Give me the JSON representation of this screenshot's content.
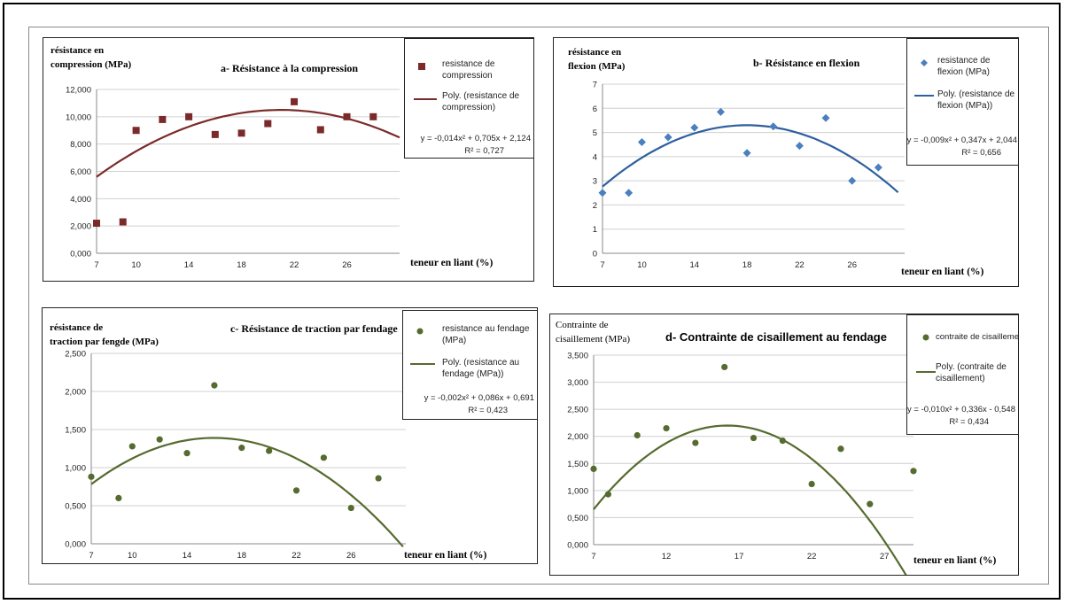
{
  "chart_data": [
    {
      "id": "a",
      "type": "scatter",
      "title": "a-  Résistance à la compression",
      "ylabel": [
        "résistance en",
        "compression  (MPa)"
      ],
      "xlabel": "teneur en liant  (%)",
      "x_ticks": [
        7,
        10,
        14,
        18,
        22,
        26
      ],
      "y_ticks": [
        "0,000",
        "2,000",
        "4,000",
        "6,000",
        "8,000",
        "10,000",
        "12,000"
      ],
      "xlim": [
        7,
        30
      ],
      "ylim": [
        0,
        12
      ],
      "marker": "square",
      "color": "#7b2a2a",
      "points": [
        [
          7,
          2.2
        ],
        [
          9,
          2.3
        ],
        [
          10,
          9.0
        ],
        [
          12,
          9.8
        ],
        [
          14,
          10.0
        ],
        [
          16,
          8.7
        ],
        [
          18,
          8.8
        ],
        [
          20,
          9.5
        ],
        [
          22,
          11.1
        ],
        [
          24,
          9.05
        ],
        [
          26,
          10.0
        ],
        [
          28,
          10.0
        ]
      ],
      "trend": {
        "a": -0.025,
        "h": 21,
        "k": 10.5,
        "from": 7,
        "to": 30
      },
      "legend": {
        "series": "resistance de compression",
        "poly": "Poly. (resistance de compression)",
        "equation": "y = -0,014x² + 0,705x + 2,124",
        "r2": "R² = 0,727"
      }
    },
    {
      "id": "b",
      "type": "scatter",
      "title": "b-  Résistance en flexion",
      "ylabel": [
        "résistance en",
        "flexion  (MPa)"
      ],
      "xlabel": "teneur en liant  (%)",
      "x_ticks": [
        7,
        10,
        14,
        18,
        22,
        26
      ],
      "y_ticks": [
        "0",
        "1",
        "2",
        "3",
        "4",
        "5",
        "6",
        "7"
      ],
      "xlim": [
        7,
        30
      ],
      "ylim": [
        0,
        7
      ],
      "marker": "diamond",
      "color": "#4a7fc0",
      "points": [
        [
          7,
          2.5
        ],
        [
          9,
          2.5
        ],
        [
          10,
          4.6
        ],
        [
          12,
          4.8
        ],
        [
          14,
          5.2
        ],
        [
          16,
          5.85
        ],
        [
          18,
          4.15
        ],
        [
          20,
          5.25
        ],
        [
          22,
          4.45
        ],
        [
          24,
          5.6
        ],
        [
          26,
          3.0
        ],
        [
          28,
          3.55
        ]
      ],
      "trend": {
        "a": -0.021,
        "h": 18,
        "k": 5.3,
        "from": 7,
        "to": 29.5
      },
      "legend": {
        "series": "resistance de flexion (MPa)",
        "poly": "Poly. (resistance de flexion (MPa))",
        "equation": "y = -0,009x² + 0,347x + 2,044",
        "r2": "R² = 0,656"
      }
    },
    {
      "id": "c",
      "type": "scatter",
      "title": "c-  Résistance de traction par fendage",
      "ylabel": [
        "résistance de",
        "traction par fengde (MPa)"
      ],
      "xlabel": "teneur en liant  (%)",
      "x_ticks": [
        7,
        10,
        14,
        18,
        22,
        26
      ],
      "y_ticks": [
        "0,000",
        "0,500",
        "1,000",
        "1,500",
        "2,000",
        "2,500"
      ],
      "xlim": [
        7,
        30
      ],
      "ylim": [
        0,
        2.5
      ],
      "marker": "circle",
      "color": "#556b2f",
      "points": [
        [
          7,
          0.88
        ],
        [
          9,
          0.6
        ],
        [
          10,
          1.28
        ],
        [
          12,
          1.37
        ],
        [
          14,
          1.19
        ],
        [
          16,
          2.08
        ],
        [
          18,
          1.26
        ],
        [
          20,
          1.22
        ],
        [
          22,
          0.7
        ],
        [
          24,
          1.13
        ],
        [
          26,
          0.47
        ],
        [
          28,
          0.86
        ]
      ],
      "trend": {
        "a": -0.0075,
        "h": 16,
        "k": 1.39,
        "from": 7,
        "to": 29.8
      },
      "legend": {
        "series": "resistance au fendage (MPa)",
        "poly": "Poly. (resistance au fendage (MPa))",
        "equation": "y = -0,002x² + 0,086x + 0,691",
        "r2": "R² = 0,423"
      }
    },
    {
      "id": "d",
      "type": "scatter",
      "title": "d- Contrainte de cisaillement au fendage",
      "ylabel": [
        "Contrainte de",
        "cisaillement (MPa)"
      ],
      "xlabel": "teneur en liant  (%)",
      "x_ticks": [
        7,
        12,
        17,
        22,
        27
      ],
      "y_ticks": [
        "0,000",
        "0,500",
        "1,000",
        "1,500",
        "2,000",
        "2,500",
        "3,000",
        "3,500"
      ],
      "xlim": [
        7,
        29
      ],
      "ylim": [
        0,
        3.5
      ],
      "marker": "circle",
      "color": "#556b2f",
      "points": [
        [
          7,
          1.4
        ],
        [
          8,
          0.93
        ],
        [
          10,
          2.02
        ],
        [
          12,
          2.15
        ],
        [
          14,
          1.88
        ],
        [
          16,
          3.28
        ],
        [
          18,
          1.97
        ],
        [
          20,
          1.92
        ],
        [
          22,
          1.12
        ],
        [
          24,
          1.77
        ],
        [
          26,
          0.75
        ],
        [
          29,
          1.36
        ]
      ],
      "trend": {
        "a": -0.0183,
        "h": 16.2,
        "k": 2.2,
        "from": 7,
        "to": 29
      },
      "legend": {
        "series": "contraite de cisaillement",
        "poly": "Poly. (contraite de cisaillement)",
        "equation": "y = -0,010x² + 0,336x - 0,548",
        "r2": "R² = 0,434"
      }
    }
  ]
}
